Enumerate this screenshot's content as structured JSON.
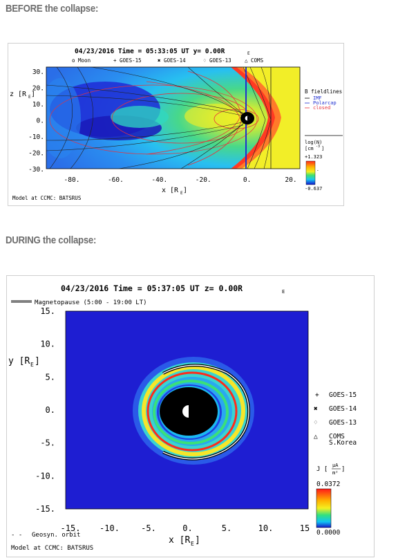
{
  "section1": {
    "heading": "BEFORE the collapse:"
  },
  "section2": {
    "heading": "DURING the collapse:"
  },
  "fig1": {
    "title": "04/23/2016 Time = 05:33:05 UT y= 0.00R",
    "title_sub": "E",
    "legend_top": [
      "o Moon",
      "+ GOES-15",
      "✖ GOES-14",
      "♢ GOES-13",
      "△ COMS"
    ],
    "zlabel": "z [R",
    "zlabel_sub": "E",
    "xlabel": "x [R",
    "xlabel_sub": "E",
    "footer": "Model at CCMC: BATSRUS",
    "bfield": {
      "title": "B fieldlines",
      "items": [
        "IMF",
        "Polarcap",
        "closed"
      ],
      "colors": [
        "#000000",
        "#1f2fd0",
        "#e8323c"
      ]
    },
    "colorbar": {
      "label1": "log(N)",
      "label2": "[cm",
      "label2_sup": "-3",
      "max": "+1.323",
      "min": "-0.637"
    }
  },
  "fig2": {
    "title": "04/23/2016 Time = 05:37:05 UT z= 0.00R",
    "title_sub": "E",
    "mp_legend": "Magnetopause (5:00 - 19:00 LT)",
    "ylabel": "y [R",
    "ylabel_sub": "E",
    "xlabel": "x [R",
    "xlabel_sub": "E",
    "geosyn": "Geosyn. orbit",
    "footer": "Model at CCMC: BATSRUS",
    "sats": [
      {
        "symbol": "+",
        "name": "GOES-15"
      },
      {
        "symbol": "✖",
        "name": "GOES-14"
      },
      {
        "symbol": "♢",
        "name": "GOES-13"
      },
      {
        "symbol": "△",
        "name": "COMS",
        "name2": "S.Korea"
      }
    ],
    "colorbar": {
      "label": "J [",
      "unit_num": "μA",
      "unit_den": "m²",
      "max": "0.0372",
      "min": "0.0000"
    }
  },
  "chart_data": [
    {
      "type": "heatmap",
      "title": "04/23/2016 Time = 05:33:05 UT y= 0.00RE",
      "xlabel": "x [RE]",
      "ylabel": "z [RE]",
      "xticks": [
        "-80.",
        "-60.",
        "-40.",
        "-20.",
        "0.",
        "20."
      ],
      "yticks": [
        "30.",
        "20.",
        "10.",
        "0.",
        "-10.",
        "-20.",
        "-30."
      ],
      "xlim": [
        -90,
        24
      ],
      "ylim": [
        -31,
        32
      ],
      "colorbar_range": [
        -0.637,
        1.323
      ],
      "colorbar_label": "log(N) [cm-3]",
      "legend": [
        "o Moon",
        "+ GOES-15",
        "✖ GOES-14",
        "♢ GOES-13",
        "△ COMS"
      ],
      "fieldline_legend": [
        "IMF",
        "Polarcap",
        "closed"
      ]
    },
    {
      "type": "heatmap",
      "title": "04/23/2016 Time = 05:37:05 UT z= 0.00RE",
      "xlabel": "x [RE]",
      "ylabel": "y [RE]",
      "xticks": [
        "-15.",
        "-10.",
        "-5.",
        "0.",
        "5.",
        "10.",
        "15"
      ],
      "yticks": [
        "15.",
        "10.",
        "5.",
        "0.",
        "-5.",
        "-10.",
        "-15."
      ],
      "xlim": [
        -15,
        15
      ],
      "ylim": [
        -15,
        15
      ],
      "colorbar_range": [
        0.0,
        0.0372
      ],
      "colorbar_label": "J [μA/m²]",
      "legend": [
        "Magnetopause (5:00 - 19:00 LT)",
        "Geosyn. orbit",
        "GOES-15",
        "GOES-14",
        "GOES-13",
        "COMS S.Korea"
      ]
    }
  ]
}
